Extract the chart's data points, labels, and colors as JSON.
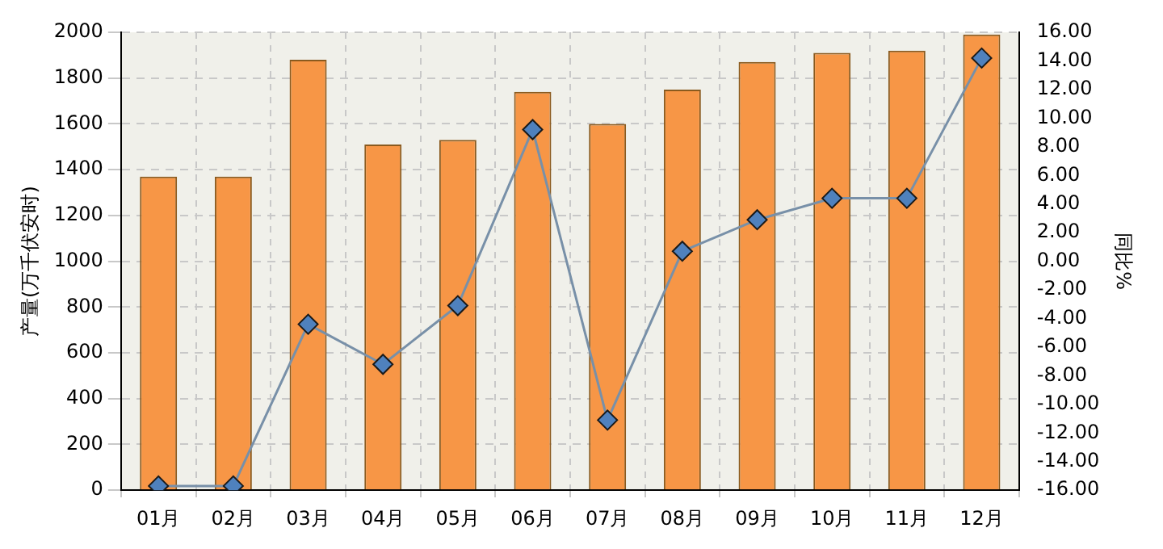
{
  "chart_data": {
    "type": "bar",
    "ylabel": "产量(万千伏安时)",
    "y2label": "同比%",
    "categories": [
      "01月",
      "02月",
      "03月",
      "04月",
      "05月",
      "06月",
      "07月",
      "08月",
      "09月",
      "10月",
      "11月",
      "12月"
    ],
    "series": [
      {
        "color": "#f79646",
        "values": [
          1370,
          1370,
          1880,
          1510,
          1530,
          1740,
          1600,
          1750,
          1870,
          1910,
          1920,
          1990
        ]
      },
      {
        "type": "line",
        "axis": "y2",
        "color": "#4f81bd",
        "marker": "diamond",
        "values": [
          -15.7,
          -15.7,
          -4.4,
          -7.2,
          -3.1,
          9.2,
          -11.1,
          0.7,
          2.9,
          4.4,
          4.4,
          14.2
        ]
      }
    ],
    "ylim": [
      0,
      2000
    ],
    "yticks": [
      0,
      200,
      400,
      600,
      800,
      1000,
      1200,
      1400,
      1600,
      1800,
      2000
    ],
    "y2lim": [
      -16,
      16
    ],
    "y2ticks": [
      {
        "value": -16,
        "label": "-16.00"
      },
      {
        "value": -14,
        "label": "-14.00"
      },
      {
        "value": -12,
        "label": "-12.00"
      },
      {
        "value": -10,
        "label": "-10.00"
      },
      {
        "value": -8,
        "label": "-8.00"
      },
      {
        "value": -6,
        "label": "-6.00"
      },
      {
        "value": -4,
        "label": "-4.00"
      },
      {
        "value": -2,
        "label": "-2.00"
      },
      {
        "value": 0,
        "label": "0.00"
      },
      {
        "value": 2,
        "label": "2.00"
      },
      {
        "value": 4,
        "label": "4.00"
      },
      {
        "value": 6,
        "label": "6.00"
      },
      {
        "value": 8,
        "label": "8.00"
      },
      {
        "value": 10,
        "label": "10.00"
      },
      {
        "value": 12,
        "label": "12.00"
      },
      {
        "value": 14,
        "label": "14.00"
      },
      {
        "value": 16,
        "label": "16.00"
      }
    ],
    "grid": true,
    "legend": false
  }
}
